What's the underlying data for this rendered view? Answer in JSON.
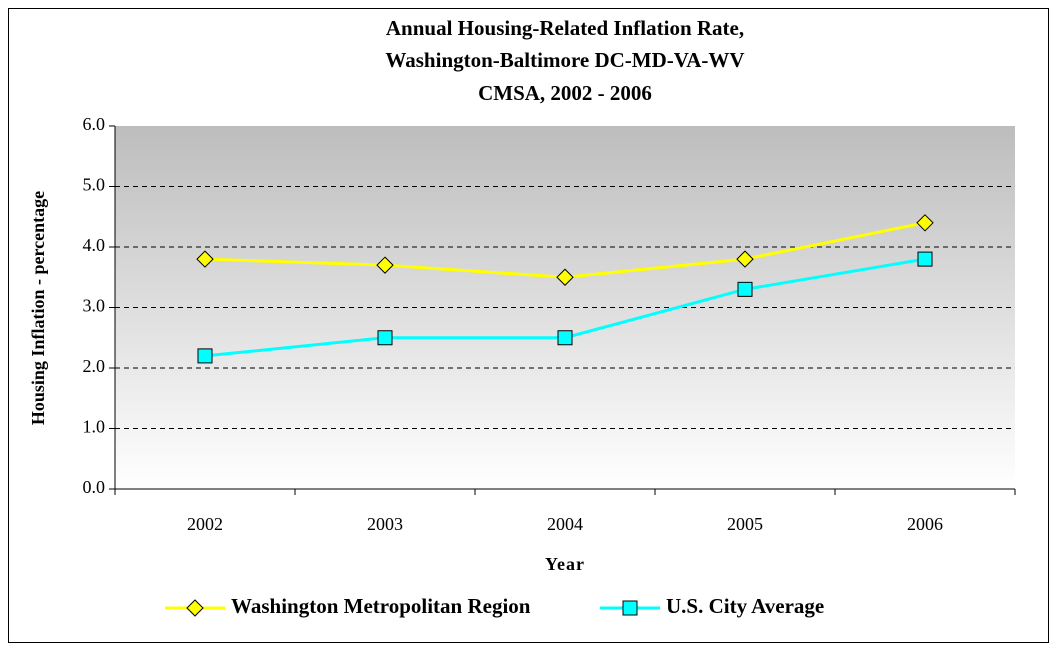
{
  "chart_data": {
    "type": "line",
    "title": [
      "Annual Housing-Related Inflation Rate,",
      "Washington-Baltimore DC-MD-VA-WV",
      "CMSA, 2002 - 2006"
    ],
    "x_label": "Year",
    "y_label": "Housing Inflation - percentage",
    "categories": [
      "2002",
      "2003",
      "2004",
      "2005",
      "2006"
    ],
    "series": [
      {
        "name": "Washington Metropolitan Region",
        "color": "#ffff00",
        "marker": "diamond",
        "values": [
          3.8,
          3.7,
          3.5,
          3.8,
          4.4
        ]
      },
      {
        "name": "U.S. City Average",
        "color": "#00ffff",
        "marker": "square",
        "values": [
          2.2,
          2.5,
          2.5,
          3.3,
          3.8
        ]
      }
    ],
    "ylim": [
      0,
      6
    ],
    "yticks": [
      {
        "value": 0,
        "label": "0.0"
      },
      {
        "value": 1,
        "label": "1.0"
      },
      {
        "value": 2,
        "label": "2.0"
      },
      {
        "value": 3,
        "label": "3.0"
      },
      {
        "value": 4,
        "label": "4.0"
      },
      {
        "value": 5,
        "label": "5.0"
      },
      {
        "value": 6,
        "label": "6.0"
      }
    ],
    "grid": true,
    "legend": "bottom"
  }
}
